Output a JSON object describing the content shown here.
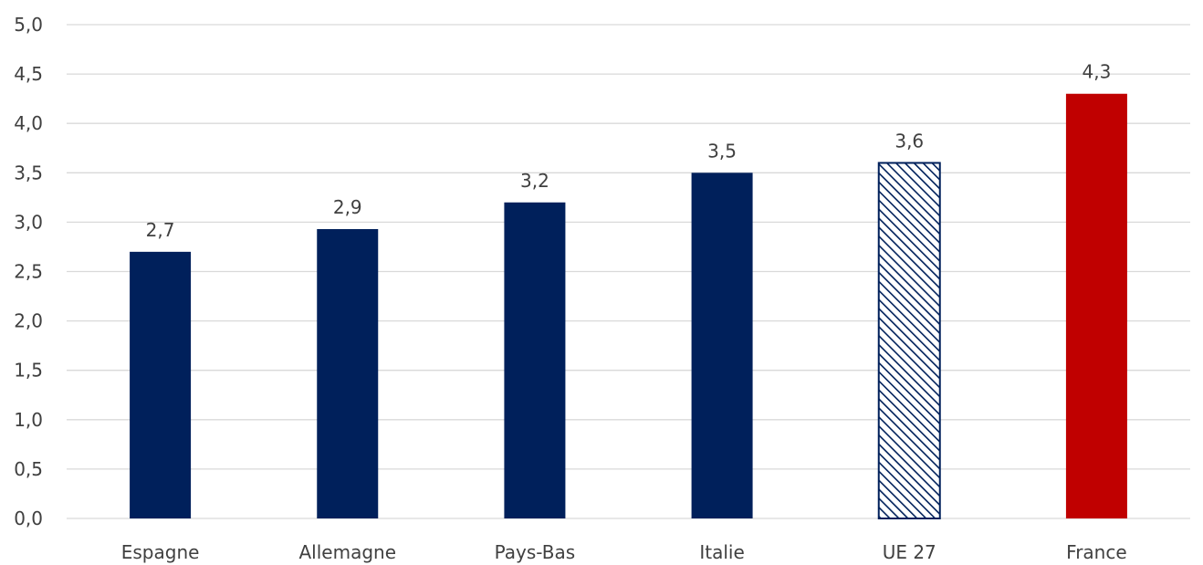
{
  "chart_data": {
    "type": "bar",
    "title": "",
    "xlabel": "",
    "ylabel": "",
    "ylim": [
      0,
      5
    ],
    "yticks": [
      "0,0",
      "0,5",
      "1,0",
      "1,5",
      "2,0",
      "2,5",
      "3,0",
      "3,5",
      "4,0",
      "4,5",
      "5,0"
    ],
    "grid": true,
    "legend": "none",
    "categories": [
      "Espagne",
      "Allemagne",
      "Pays-Bas",
      "Italie",
      "UE 27",
      "France"
    ],
    "values": [
      2.7,
      2.93,
      3.2,
      3.5,
      3.6,
      4.3
    ],
    "data_labels": [
      "2,7",
      "2,9",
      "3,2",
      "3,5",
      "3,6",
      "4,3"
    ],
    "bar_styles": [
      "solid",
      "solid",
      "solid",
      "solid",
      "hatched",
      "solid"
    ],
    "colors": {
      "default": "#00205b",
      "highlight": "#c00000",
      "hatch": "#00205b",
      "grid": "#d9d9d9",
      "text": "#404040"
    },
    "highlight_index": 5
  }
}
